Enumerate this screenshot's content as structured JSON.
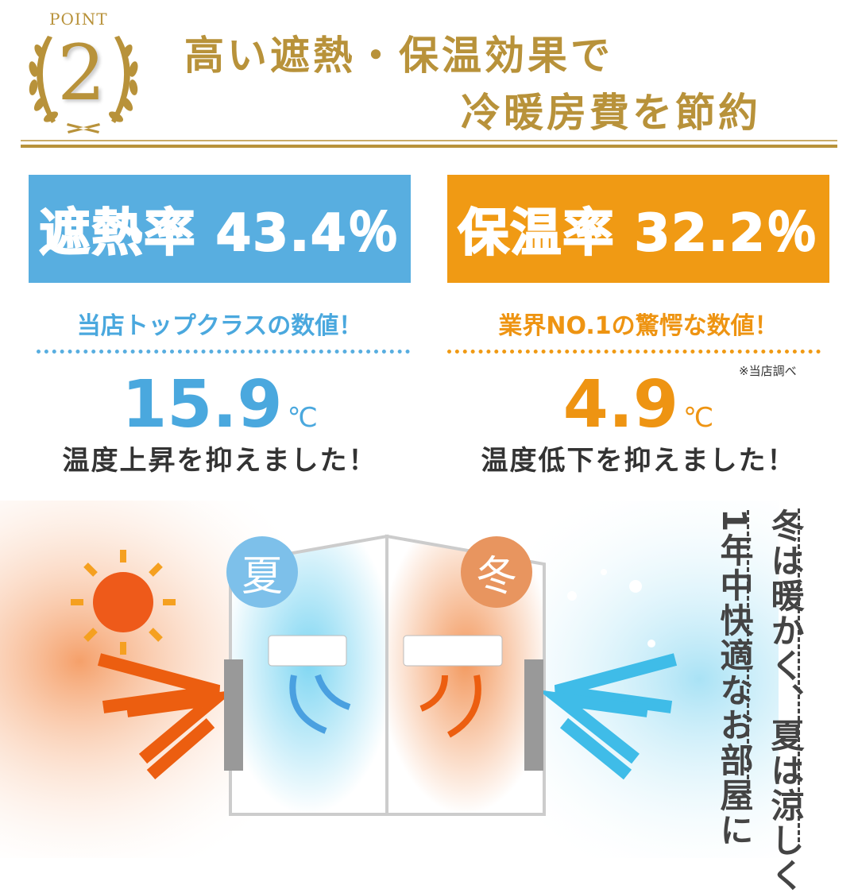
{
  "header": {
    "badge_label": "POINT",
    "badge_number": "2",
    "title_line1": "高い遮熱・保温効果で",
    "title_line2": "冷暖房費を節約"
  },
  "colors": {
    "gold": "#b8923a",
    "blue": "#58aee0",
    "orange": "#f09a14",
    "text": "#333333"
  },
  "left": {
    "rate_label": "遮熱率 43.4％",
    "subtitle": "当店トップクラスの数値！",
    "value": "15.9",
    "unit": "℃",
    "result": "温度上昇を抑えました！"
  },
  "right": {
    "rate_label": "保温率 32.2％",
    "subtitle": "業界NO.1の驚愕な数値！",
    "note": "※当店調べ",
    "value": "4.9",
    "unit": "℃",
    "result": "温度低下を抑えました！"
  },
  "illustration": {
    "summer_label": "夏",
    "winter_label": "冬",
    "sun_icon": "sun-icon",
    "ac_icon": "air-conditioner-icon"
  },
  "tagline": {
    "line1": "冬は暖かく、夏は涼しく",
    "line2": "1年中快適なお部屋に"
  }
}
